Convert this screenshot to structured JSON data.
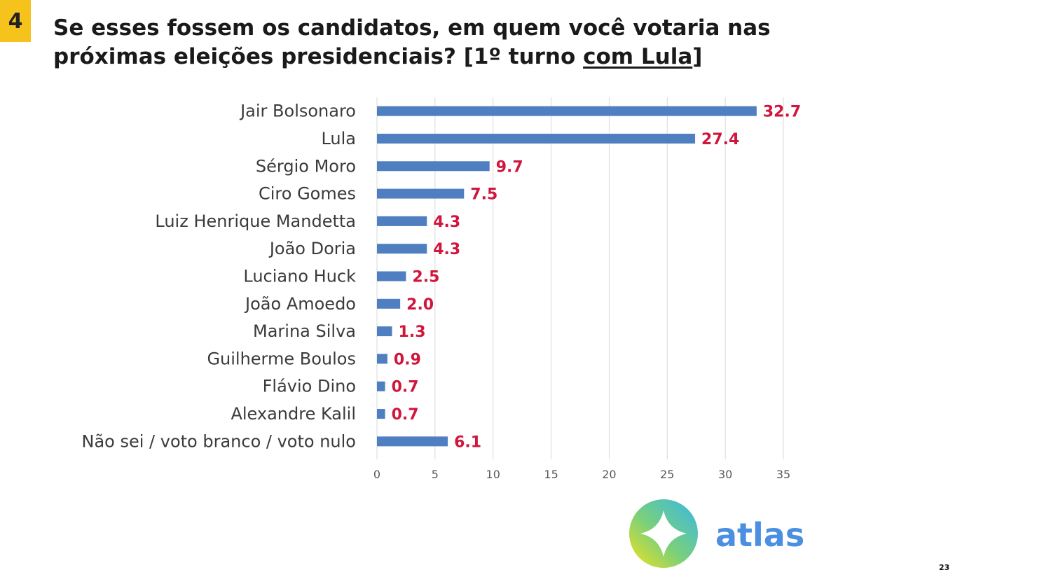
{
  "slide": {
    "number": "4",
    "title_part1": "Se esses fossem os candidatos, em quem você votaria nas próximas eleições presidenciais? [1º turno ",
    "title_underlined": "com Lula",
    "title_part2": "]",
    "page_number": "23"
  },
  "brand": {
    "name": "atlas",
    "text_color": "#4a8fe0"
  },
  "colors": {
    "bar": "#4f7fc0",
    "value_label": "#d0163c",
    "grid": "#d9d9d9",
    "category_label": "#3b3b3b",
    "tick_label": "#595959"
  },
  "chart_data": {
    "type": "bar",
    "orientation": "horizontal",
    "categories": [
      "Jair Bolsonaro",
      "Lula",
      "Sérgio Moro",
      "Ciro Gomes",
      "Luiz Henrique Mandetta",
      "João Doria",
      "Luciano Huck",
      "João Amoedo",
      "Marina Silva",
      "Guilherme Boulos",
      "Flávio Dino",
      "Alexandre Kalil",
      "Não sei / voto branco / voto nulo"
    ],
    "values": [
      32.7,
      27.4,
      9.7,
      7.5,
      4.3,
      4.3,
      2.5,
      2.0,
      1.3,
      0.9,
      0.7,
      0.7,
      6.1
    ],
    "value_labels": [
      "32.7",
      "27.4",
      "9.7",
      "7.5",
      "4.3",
      "4.3",
      "2.5",
      "2.0",
      "1.3",
      "0.9",
      "0.7",
      "0.7",
      "6.1"
    ],
    "xlim": [
      0,
      35
    ],
    "x_ticks": [
      "0",
      "5",
      "10",
      "15",
      "20",
      "25",
      "30",
      "35"
    ],
    "grid": "vertical"
  }
}
